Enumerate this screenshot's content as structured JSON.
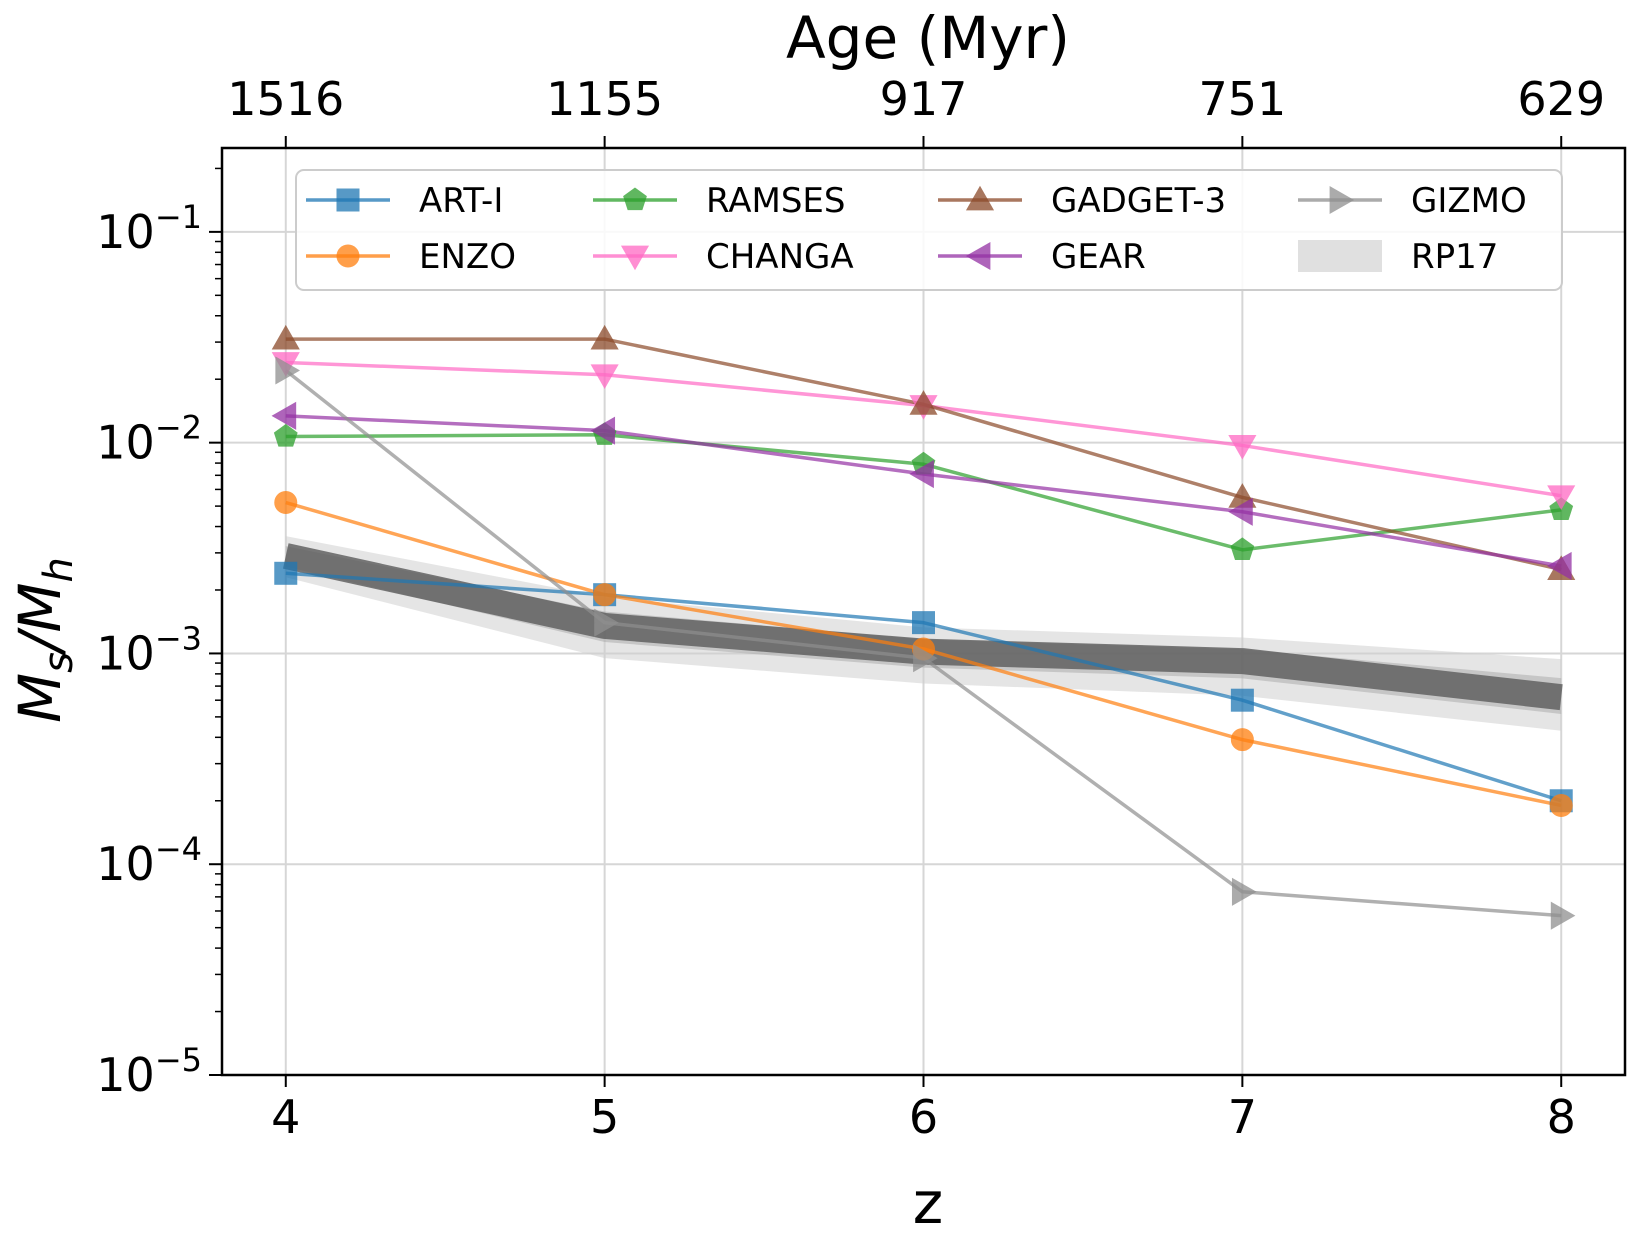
{
  "chart_data": {
    "type": "line",
    "title": "",
    "xlabel": "z",
    "ylabel": "M_s/M_h",
    "top_xlabel": "Age (Myr)",
    "x": [
      4,
      5,
      6,
      7,
      8
    ],
    "top_ticks": [
      "1516",
      "1155",
      "917",
      "751",
      "629"
    ],
    "xlim": [
      3.8,
      8.2
    ],
    "ylim": [
      1e-05,
      0.25
    ],
    "yscale": "log",
    "y_ticks": [
      {
        "exp": "−5",
        "base": "10"
      },
      {
        "exp": "−4",
        "base": "10"
      },
      {
        "exp": "−3",
        "base": "10"
      },
      {
        "exp": "−2",
        "base": "10"
      },
      {
        "exp": "−1",
        "base": "10"
      }
    ],
    "grid": true,
    "legend_position": "top",
    "series": [
      {
        "name": "ART-I",
        "color": "#1f77b4",
        "marker": "square",
        "values": [
          0.0024,
          0.0019,
          0.0014,
          0.0006,
          0.0002
        ]
      },
      {
        "name": "ENZO",
        "color": "#ff7f0e",
        "marker": "circle",
        "values": [
          0.0052,
          0.0019,
          0.00105,
          0.00039,
          0.00019
        ]
      },
      {
        "name": "RAMSES",
        "color": "#2ca02c",
        "marker": "pentagon",
        "values": [
          0.0107,
          0.0109,
          0.0079,
          0.0031,
          0.0048
        ]
      },
      {
        "name": "CHANGA",
        "color": "#ff69c4",
        "marker": "triangle-down",
        "values": [
          0.024,
          0.021,
          0.015,
          0.0097,
          0.0056
        ]
      },
      {
        "name": "GADGET-3",
        "color": "#8c4a2a",
        "marker": "triangle-up",
        "values": [
          0.031,
          0.031,
          0.0152,
          0.0055,
          0.0025
        ]
      },
      {
        "name": "GEAR",
        "color": "#9431a4",
        "marker": "triangle-left",
        "values": [
          0.0134,
          0.0114,
          0.0071,
          0.0047,
          0.0026
        ]
      },
      {
        "name": "GIZMO",
        "color": "#8f8f8f",
        "marker": "triangle-right",
        "values": [
          0.022,
          0.0014,
          0.00095,
          7.4e-05,
          5.7e-05
        ]
      }
    ],
    "bands": [
      {
        "name": "RP17",
        "color": "#9e9e9e",
        "center": [
          0.0029,
          0.00135,
          0.00102,
          0.00092,
          0.00062
        ],
        "lower": [
          0.0023,
          0.00095,
          0.00072,
          0.00063,
          0.00043
        ],
        "upper": [
          0.0036,
          0.00185,
          0.00133,
          0.00119,
          0.00094
        ]
      }
    ]
  }
}
